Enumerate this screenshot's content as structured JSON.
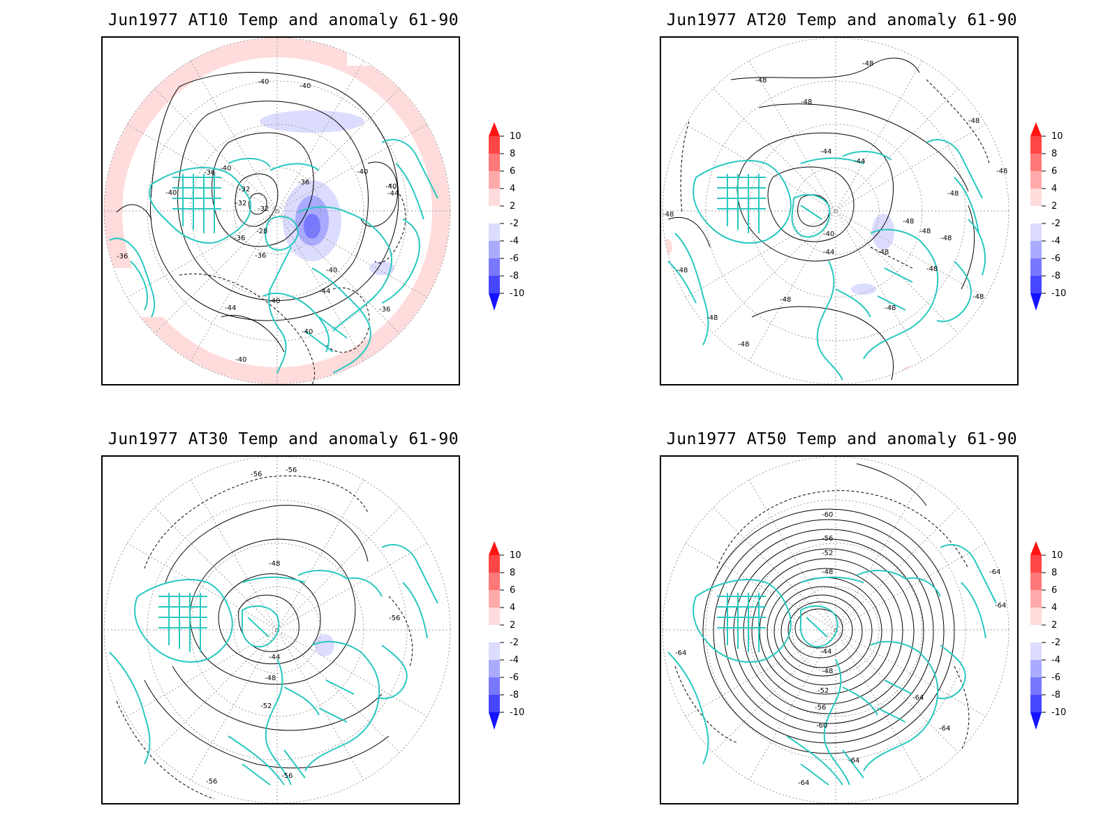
{
  "colors": {
    "coast": "#28c8c0",
    "contour": "#000000",
    "grid": "#9a9a9a",
    "scale": [
      "#1414ff",
      "#4646ff",
      "#7878ff",
      "#aaaaff",
      "#dcdcff",
      "#ffffff",
      "#ffdcdc",
      "#ffaaaa",
      "#ff7878",
      "#ff4646",
      "#ff1414"
    ]
  },
  "colorbar": {
    "labels": [
      "10",
      "8",
      "6",
      "4",
      "2",
      "-2",
      "-4",
      "-6",
      "-8",
      "-10"
    ]
  },
  "panels": [
    {
      "title": "Jun1977 AT10 Temp and anomaly 61-90",
      "contour_labels": [
        "-40",
        "-40",
        "-36",
        "-40",
        "-40",
        "-32",
        "-32",
        "-36",
        "-40",
        "-40",
        "-44",
        "-36",
        "-36",
        "-28",
        "-32",
        "-36",
        "-40",
        "-44",
        "-44",
        "-40",
        "-36",
        "-40",
        "-40"
      ]
    },
    {
      "title": "Jun1977 AT20 Temp and anomaly 61-90",
      "contour_labels": [
        "-48",
        "-48",
        "-48",
        "-48",
        "-44",
        "-44",
        "-48",
        "-48",
        "-48",
        "-40",
        "-48",
        "-48",
        "-44",
        "-48",
        "-48",
        "-48",
        "-48",
        "-48",
        "-48",
        "-48",
        "-48",
        "-48"
      ]
    },
    {
      "title": "Jun1977 AT30 Temp and anomaly 61-90",
      "contour_labels": [
        "-56",
        "-56",
        "-48",
        "-56",
        "-44",
        "-48",
        "-52",
        "-56",
        "-56"
      ]
    },
    {
      "title": "Jun1977 AT50 Temp and anomaly 61-90",
      "contour_labels": [
        "-60",
        "-56",
        "-52",
        "-48",
        "-64",
        "-64",
        "-44",
        "-48",
        "-52",
        "-56",
        "-60",
        "-64",
        "-64",
        "-64",
        "-64",
        "-64"
      ]
    }
  ]
}
